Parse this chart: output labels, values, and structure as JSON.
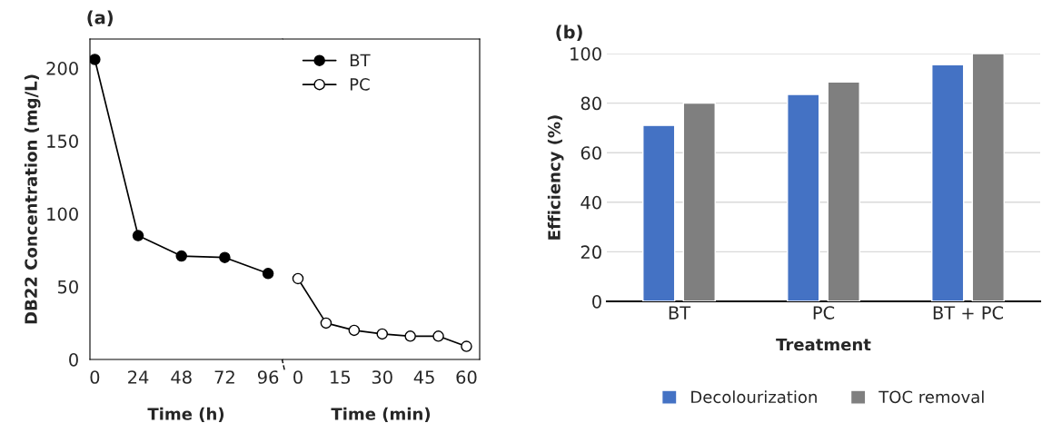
{
  "chart_data": [
    {
      "type": "line",
      "title": "(a)",
      "xlabel": "Time (h)",
      "ylabel": "DB22 Concentration (mg/L)",
      "x": [
        0,
        24,
        48,
        72,
        96
      ],
      "xlim": [
        -2.7,
        104
      ],
      "xticks": [
        0,
        24,
        48,
        72,
        96
      ],
      "ylim": [
        0,
        220
      ],
      "yticks": [
        0,
        50,
        100,
        150,
        200
      ],
      "marker": "circle",
      "line_style": "solid",
      "grid": false,
      "legend": "top right",
      "series": [
        {
          "name": "BT",
          "color": "#000000",
          "values": [
            206,
            85,
            71,
            70,
            59
          ]
        }
      ]
    },
    {
      "type": "line",
      "xlabel": "Time (min)",
      "x": [
        0,
        10,
        20,
        30,
        40,
        50,
        60
      ],
      "xlim": [
        -5.5,
        64.7
      ],
      "xticks": [
        0,
        15,
        30,
        45,
        60
      ],
      "ylim": [
        0,
        220
      ],
      "tick_labels": "x",
      "marker": "circle",
      "line_style": "solid",
      "grid": false,
      "series": [
        {
          "name": "PC",
          "color": "#ffffff",
          "values": [
            55.5,
            25,
            20,
            17.5,
            16,
            16,
            9
          ]
        }
      ]
    },
    {
      "type": "bar",
      "title": "(b)",
      "xlabel": "Treatment",
      "ylabel": "Efficiency (%)",
      "categories": [
        "BT",
        "PC",
        "BT + PC"
      ],
      "ylim": [
        0,
        100
      ],
      "yticks": [
        0,
        20,
        40,
        60,
        80,
        100
      ],
      "grid": "y",
      "legend": "bottom",
      "series": [
        {
          "name": "Decolourization",
          "color": "#4472c4",
          "values": [
            71,
            83.5,
            95.5
          ]
        },
        {
          "name": "TOC removal",
          "color": "#7f7f7f",
          "values": [
            80,
            88.5,
            100
          ]
        }
      ]
    }
  ]
}
